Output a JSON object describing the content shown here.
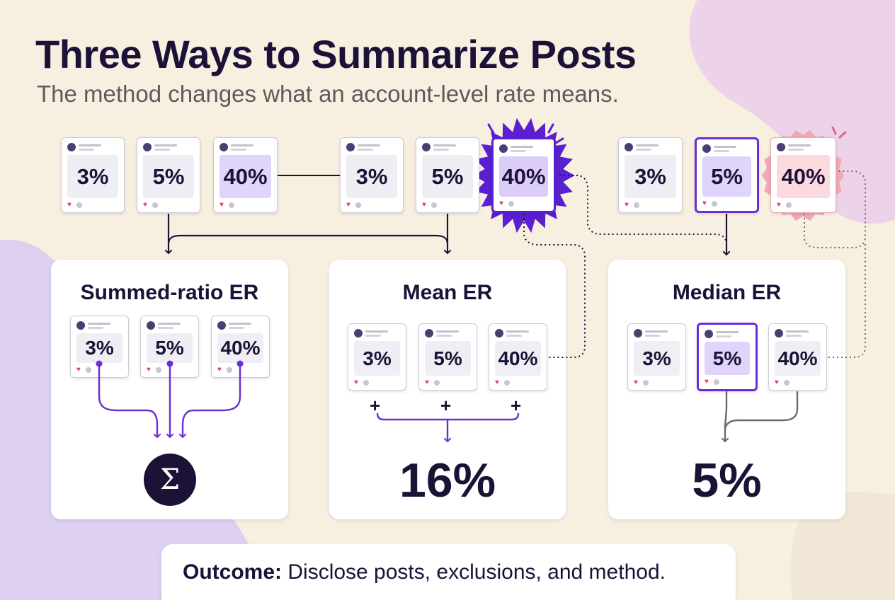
{
  "title": "Three Ways to Summarize Posts",
  "subtitle": "The method changes what an account-level rate means.",
  "top_cards": [
    "3%",
    "5%",
    "40%",
    "3%",
    "5%",
    "40%",
    "3%",
    "5%",
    "40%"
  ],
  "panels": {
    "summed": {
      "title": "Summed-ratio ER",
      "cards": [
        "3%",
        "5%",
        "40%"
      ],
      "symbol": "Σ"
    },
    "mean": {
      "title": "Mean ER",
      "cards": [
        "3%",
        "5%",
        "40%"
      ],
      "plus": "+",
      "result": "16%"
    },
    "median": {
      "title": "Median ER",
      "cards": [
        "3%",
        "5%",
        "40%"
      ],
      "result": "5%"
    }
  },
  "outcome": {
    "label": "Outcome:",
    "text": "Disclose posts, exclusions, and method."
  },
  "colors": {
    "accent": "#6a2ed6",
    "navy": "#1c1238",
    "pink": "#e8a9b6",
    "background": "#f7efe0"
  }
}
